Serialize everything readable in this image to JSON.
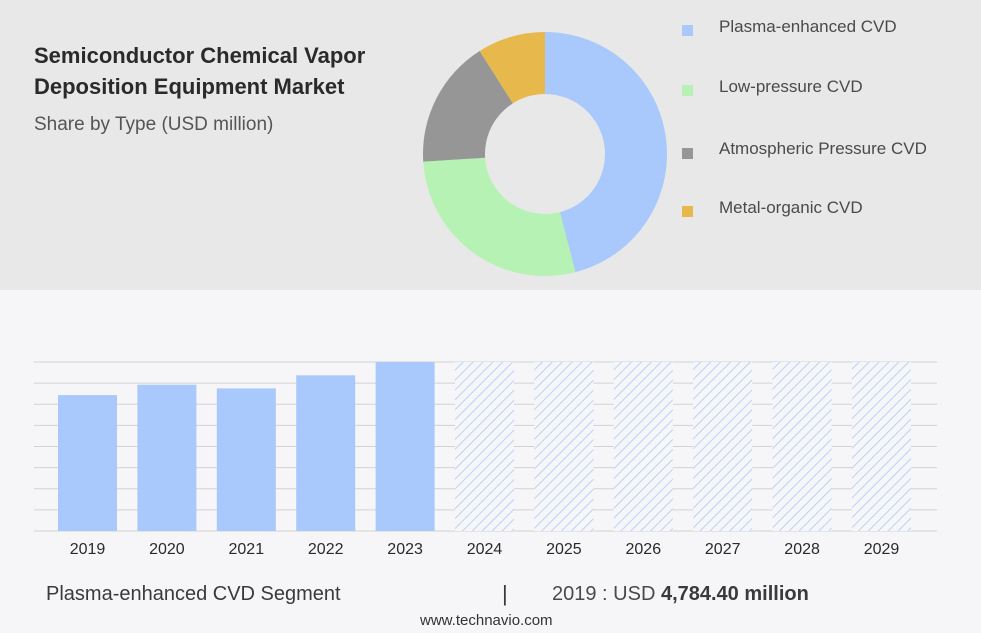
{
  "header": {
    "title": "Semiconductor Chemical Vapor Deposition Equipment Market",
    "subtitle": "Share by Type (USD million)"
  },
  "chart_data": [
    {
      "type": "pie",
      "style": "donut",
      "title": "",
      "slices": [
        {
          "label": "Plasma-enhanced CVD",
          "value": 46,
          "color": "#a9c8fb"
        },
        {
          "label": "Low-pressure CVD",
          "value": 28,
          "color": "#b5f2b4"
        },
        {
          "label": "Atmospheric Pressure CVD",
          "value": 17,
          "color": "#969696"
        },
        {
          "label": "Metal-organic CVD",
          "value": 9,
          "color": "#e7b84b"
        }
      ],
      "legend": "right"
    },
    {
      "type": "bar",
      "series_name": "Plasma-enhanced CVD",
      "categories": [
        "2019",
        "2020",
        "2021",
        "2022",
        "2023",
        "2024",
        "2025",
        "2026",
        "2027",
        "2028",
        "2029"
      ],
      "values": [
        4784.4,
        5150,
        5020,
        5480,
        5950,
        5950,
        5950,
        5950,
        5950,
        5950,
        5950
      ],
      "forecast_from": "2024",
      "ylim": [
        0,
        5950
      ],
      "grid": true,
      "color": "#a9c8fb"
    }
  ],
  "footer": {
    "segment": "Plasma-enhanced CVD Segment",
    "separator": "|",
    "year_prefix": "2019 : USD ",
    "value": "4,784.40 million",
    "source": "www.technavio.com"
  }
}
